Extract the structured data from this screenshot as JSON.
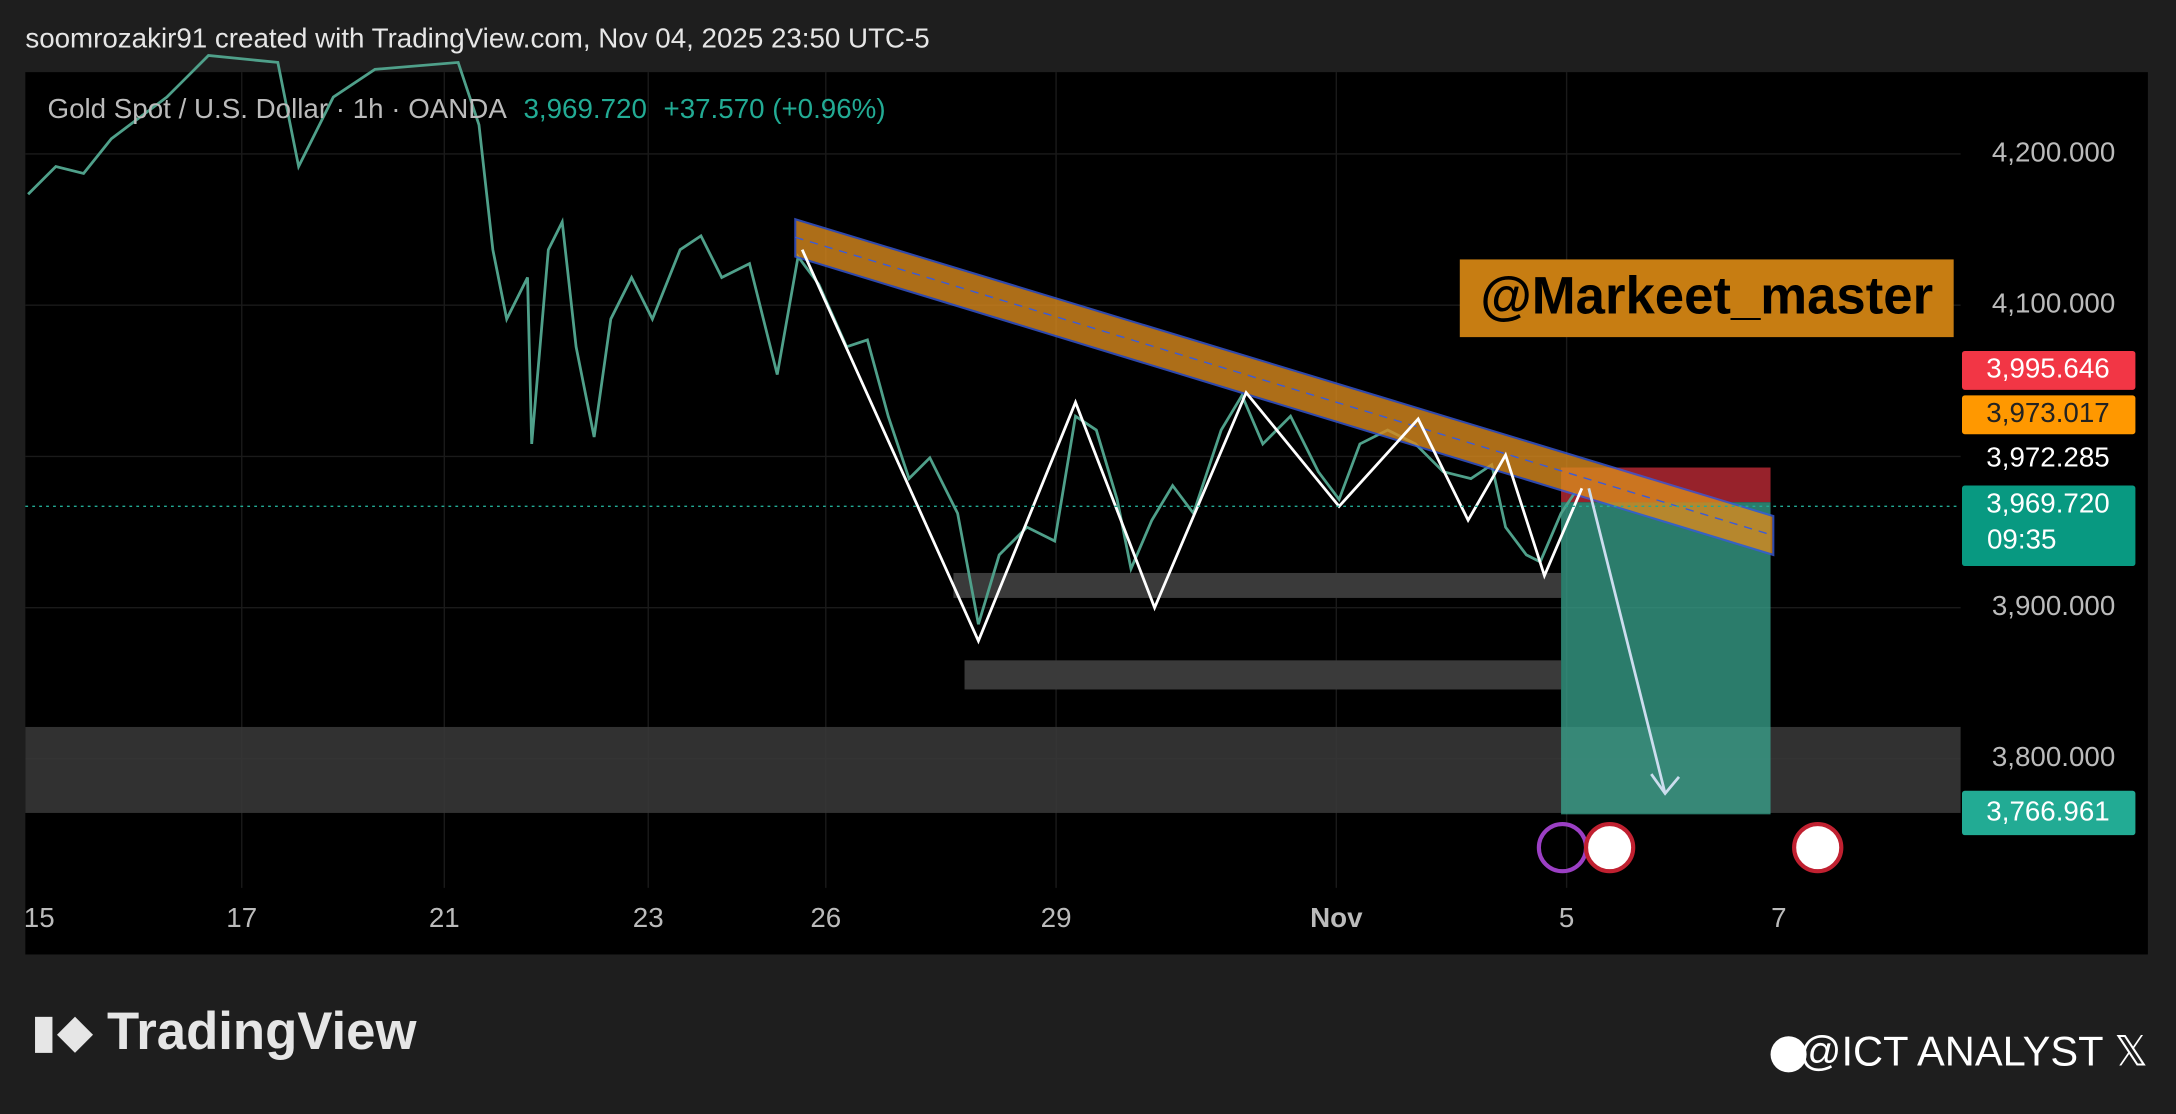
{
  "header": {
    "text": "soomrozakir91 created with TradingView.com, Nov 04, 2025 23:50 UTC-5"
  },
  "symbol": {
    "name": "Gold Spot / U.S. Dollar · 1h · OANDA",
    "price": "3,969.720",
    "change": "+37.570 (+0.96%)"
  },
  "watermark": "@Markeet_master",
  "price_axis": [
    "4,200.000",
    "4,100.000",
    "3,900.000",
    "3,800.000"
  ],
  "price_labels": [
    {
      "text": "3,995.646"
    },
    {
      "text": "3,973.017"
    },
    {
      "text": "3,972.285"
    },
    {
      "text": "3,969.720",
      "sub": "09:35"
    },
    {
      "text": "3,766.961"
    }
  ],
  "time_axis": [
    "15",
    "17",
    "21",
    "23",
    "26",
    "29",
    "Nov",
    "5",
    "7"
  ],
  "footer": {
    "logo": "TradingView",
    "credit": "@ICT ANALYST 𝕏"
  }
}
